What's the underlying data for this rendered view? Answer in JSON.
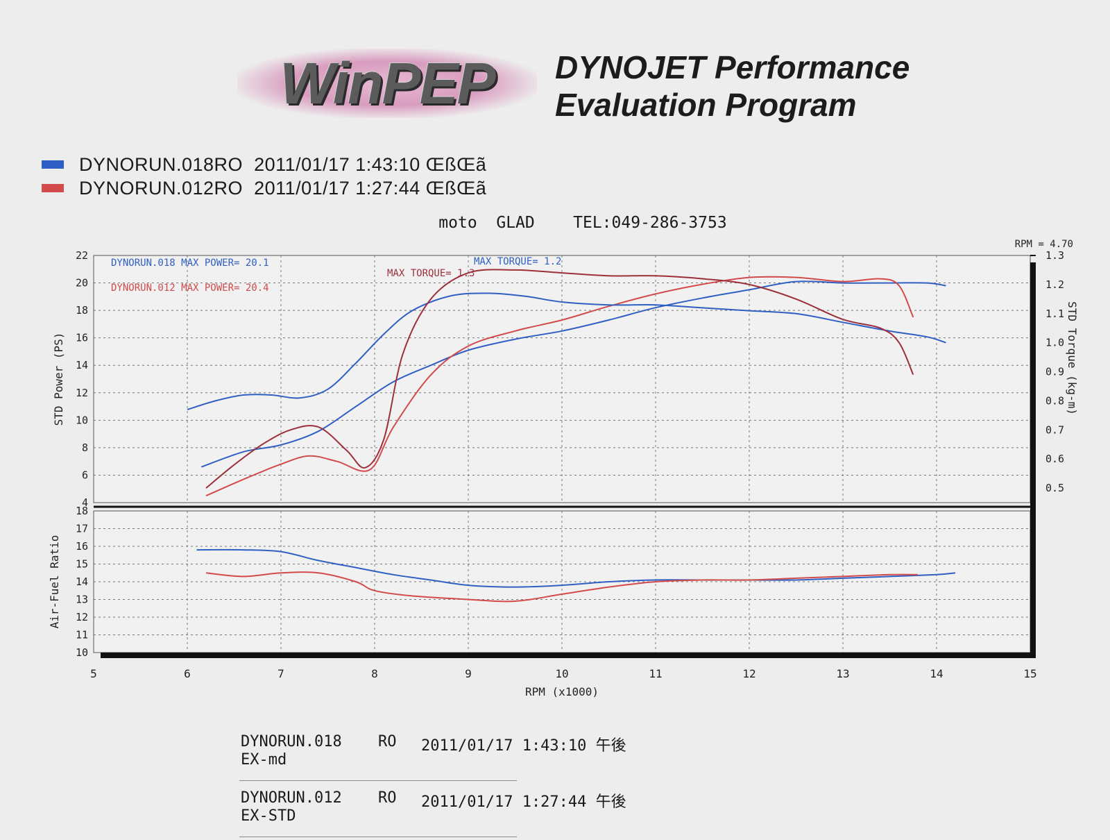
{
  "header": {
    "logo_text": "WinPEP",
    "title_line1": "DYNOJET Performance",
    "title_line2": "Evaluation Program"
  },
  "legend": [
    {
      "file": "DYNORUN.018RO",
      "timestamp": "2011/01/17 1:43:10 ŒßŒã",
      "color": "#2f5fc4"
    },
    {
      "file": "DYNORUN.012RO",
      "timestamp": "2011/01/17 1:27:44 ŒßŒã",
      "color": "#d24a4a"
    }
  ],
  "shop_line": "moto  GLAD    TEL:049-286-3753",
  "chart_data": {
    "type": "line",
    "xlabel": "RPM (x1000)",
    "xlim": [
      5,
      15
    ],
    "x_ticks": [
      "5",
      "6",
      "7",
      "8",
      "9",
      "10",
      "11",
      "12",
      "13",
      "14",
      "15"
    ],
    "upper_panel": {
      "ylabel_left": "STD Power (PS)",
      "ylabel_right": "STD Torque (kg-m)",
      "ylim_left": [
        4,
        22
      ],
      "y_ticks_left": [
        "4",
        "6",
        "8",
        "10",
        "12",
        "14",
        "16",
        "18",
        "20",
        "22"
      ],
      "ylim_right": [
        0.45,
        1.3
      ],
      "y_ticks_right": [
        "0.5",
        "0.6",
        "0.7",
        "0.8",
        "0.9",
        "1.0",
        "1.1",
        "1.2",
        "1.3"
      ],
      "rpm_note": "RPM = 4.70",
      "annotations": [
        {
          "text": "DYNORUN.018  MAX POWER= 20.1",
          "color": "#2f5fc4"
        },
        {
          "text": "DYNORUN.012  MAX POWER= 20.4",
          "color": "#d24a4a"
        },
        {
          "text": "MAX TORQUE= 1.2",
          "color": "#2f5fc4"
        },
        {
          "text": "MAX TORQUE= 1.3",
          "color": "#9b2f3a"
        }
      ],
      "series": [
        {
          "name": "DYNORUN.018",
          "measure": "power",
          "axis": "left",
          "color": "#2f5fc4",
          "x": [
            6.15,
            6.6,
            7.0,
            7.4,
            7.8,
            8.2,
            8.6,
            9.0,
            9.5,
            10.0,
            10.5,
            11.0,
            11.5,
            12.0,
            12.5,
            13.0,
            13.5,
            13.9,
            14.1
          ],
          "y": [
            6.6,
            7.7,
            8.2,
            9.2,
            11.0,
            12.8,
            14.0,
            15.1,
            15.9,
            16.5,
            17.3,
            18.2,
            18.9,
            19.5,
            20.1,
            20.0,
            20.0,
            20.0,
            19.8
          ]
        },
        {
          "name": "DYNORUN.012",
          "measure": "power",
          "axis": "left",
          "color": "#d24a4a",
          "x": [
            6.2,
            6.6,
            7.0,
            7.3,
            7.6,
            7.95,
            8.2,
            8.6,
            9.0,
            9.5,
            10.0,
            10.5,
            11.0,
            11.5,
            12.0,
            12.5,
            13.0,
            13.4,
            13.6,
            13.75
          ],
          "y": [
            4.5,
            5.7,
            6.8,
            7.4,
            7.0,
            6.4,
            9.5,
            13.3,
            15.4,
            16.5,
            17.3,
            18.3,
            19.2,
            19.9,
            20.4,
            20.4,
            20.1,
            20.3,
            19.8,
            17.5
          ]
        },
        {
          "name": "DYNORUN.018",
          "measure": "torque",
          "axis": "right",
          "color": "#2f5fc4",
          "x": [
            6.0,
            6.3,
            6.6,
            6.9,
            7.2,
            7.5,
            7.8,
            8.1,
            8.4,
            8.8,
            9.2,
            9.6,
            10.0,
            10.5,
            11.0,
            11.5,
            12.0,
            12.5,
            13.0,
            13.5,
            13.9,
            14.1
          ],
          "y": [
            0.77,
            0.8,
            0.82,
            0.82,
            0.81,
            0.84,
            0.93,
            1.03,
            1.11,
            1.16,
            1.17,
            1.16,
            1.14,
            1.13,
            1.13,
            1.12,
            1.11,
            1.1,
            1.07,
            1.04,
            1.02,
            1.0
          ]
        },
        {
          "name": "DYNORUN.012",
          "measure": "torque",
          "axis": "right",
          "color": "#9b2f3a",
          "x": [
            6.2,
            6.5,
            6.8,
            7.1,
            7.4,
            7.7,
            7.9,
            8.1,
            8.3,
            8.6,
            9.0,
            9.5,
            10.0,
            10.5,
            11.0,
            11.5,
            12.0,
            12.5,
            13.0,
            13.4,
            13.6,
            13.75
          ],
          "y": [
            0.5,
            0.58,
            0.65,
            0.7,
            0.71,
            0.63,
            0.57,
            0.67,
            0.96,
            1.15,
            1.24,
            1.25,
            1.24,
            1.23,
            1.23,
            1.22,
            1.2,
            1.15,
            1.08,
            1.05,
            1.0,
            0.89
          ]
        }
      ]
    },
    "lower_panel": {
      "ylabel": "Air-Fuel Ratio",
      "ylim": [
        10,
        18
      ],
      "y_ticks": [
        "10",
        "11",
        "12",
        "13",
        "14",
        "15",
        "16",
        "17",
        "18"
      ],
      "series": [
        {
          "name": "DYNORUN.018",
          "color": "#2f5fc4",
          "x": [
            6.1,
            6.6,
            7.0,
            7.4,
            7.8,
            8.2,
            8.6,
            9.0,
            9.5,
            10.0,
            10.5,
            11.0,
            11.5,
            12.0,
            12.5,
            13.0,
            13.5,
            14.0,
            14.2
          ],
          "y": [
            15.8,
            15.8,
            15.7,
            15.2,
            14.8,
            14.4,
            14.1,
            13.8,
            13.7,
            13.8,
            14.0,
            14.1,
            14.1,
            14.1,
            14.1,
            14.2,
            14.3,
            14.4,
            14.5
          ]
        },
        {
          "name": "DYNORUN.012",
          "color": "#d24a4a",
          "x": [
            6.2,
            6.6,
            7.0,
            7.4,
            7.8,
            8.0,
            8.4,
            9.0,
            9.5,
            10.0,
            10.5,
            11.0,
            11.5,
            12.0,
            12.5,
            13.0,
            13.5,
            13.8
          ],
          "y": [
            14.5,
            14.3,
            14.5,
            14.5,
            14.0,
            13.5,
            13.2,
            13.0,
            12.9,
            13.3,
            13.7,
            14.0,
            14.1,
            14.1,
            14.2,
            14.3,
            14.4,
            14.4
          ]
        }
      ]
    }
  },
  "runs": [
    {
      "name": "DYNORUN.018",
      "mode": "RO",
      "datetime": "2011/01/17 1:43:10 午後",
      "note": "EX-md"
    },
    {
      "name": "DYNORUN.012",
      "mode": "RO",
      "datetime": "2011/01/17 1:27:44 午後",
      "note": "EX-STD"
    }
  ]
}
